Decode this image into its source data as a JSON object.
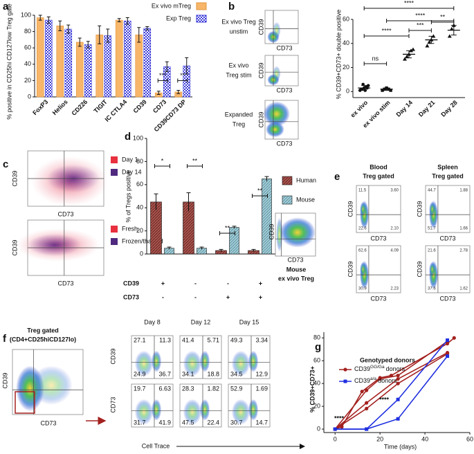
{
  "figure": {
    "panel_labels": [
      "a",
      "b",
      "c",
      "d",
      "e",
      "f",
      "g"
    ],
    "b_flow": {
      "labels": [
        [
          "Ex vivo Treg",
          "unstim"
        ],
        [
          "Ex vivo",
          "Treg stim"
        ],
        [
          "Expanded",
          "Treg"
        ]
      ],
      "x_axis": "CD73",
      "y_axis": "CD39"
    },
    "c_flow": {
      "legends": [
        [
          "Day 1",
          "Day 14"
        ],
        [
          "Fresh",
          "Frozen/thawed"
        ]
      ],
      "x_axis": "CD73",
      "y_axis": "CD39"
    },
    "d_inset": {
      "label": [
        "Mouse",
        "ex vivo Treg"
      ],
      "x_axis": "CD73",
      "y_axis": "CD39"
    },
    "e_flow": {
      "columns": [
        [
          "Blood",
          "Treg gated"
        ],
        [
          "Spleen",
          "Treg gated"
        ]
      ],
      "x_axis": "CD73",
      "y_axis": "CD39",
      "quadrants": [
        [
          [
            "11.5",
            "3.60",
            "22.6",
            "2.10"
          ],
          [
            "62.6",
            "4.09",
            "30.9",
            "2.23"
          ]
        ],
        [
          [
            "44.7",
            "1.88",
            "51.7",
            "1.66"
          ],
          [
            "21.6",
            "2.78",
            "37.6",
            "1.62"
          ]
        ]
      ]
    },
    "f_flow": {
      "gate_title": "Treg gated",
      "gate_subtitle": "(CD4+CD25hiCD127lo)",
      "gate_x_axis": "CD73",
      "gate_y_axis": "CD39",
      "days": [
        "Day 8",
        "Day 12",
        "Day 15"
      ],
      "row_labels": [
        "CD39",
        "CD73"
      ],
      "x_axis": "Cell Trace",
      "quadrants": [
        [
          [
            "27.1",
            "11.3",
            "24.9",
            "36.7"
          ],
          [
            "41.4",
            "5.71",
            "34.1",
            "18.8"
          ],
          [
            "49.3",
            "3.34",
            "34.5",
            "12.9"
          ]
        ],
        [
          [
            "19.7",
            "6.63",
            "31.7",
            "41.9"
          ],
          [
            "28.3",
            "1.82",
            "47.5",
            "22.4"
          ],
          [
            "52.9",
            "1.69",
            "30.7",
            "14.7"
          ]
        ]
      ]
    }
  },
  "chart_data": [
    {
      "type": "bar",
      "ylabel": "% positive in CD25hi CD127low Treg gate",
      "categories": [
        "FoxP3",
        "Helios",
        "CD226",
        "TIGIT",
        "IC CTLA4",
        "CD39",
        "CD73",
        "CD39CD73 DP"
      ],
      "series": [
        {
          "name": "Ex vivo mTreg",
          "color": "#f7b66a",
          "values": [
            97,
            87,
            67,
            76,
            94,
            76,
            5,
            6
          ],
          "errors": [
            3,
            6,
            5,
            11,
            2,
            9,
            2,
            2
          ]
        },
        {
          "name": "Exp Treg",
          "color": "#3a3ad8",
          "values": [
            94,
            83,
            64,
            75,
            93,
            84,
            37,
            38
          ],
          "errors": [
            4,
            5,
            4,
            8,
            4,
            2,
            6,
            10
          ]
        }
      ],
      "ylim": [
        0,
        100
      ],
      "yticks": [
        0,
        20,
        40,
        60,
        80,
        100
      ],
      "annotations": [
        "***",
        "**"
      ]
    },
    {
      "type": "dot",
      "ylabel": "% CD39+CD73+ double positive",
      "categories": [
        "ex vivo",
        "ex vivo stim",
        "Day 14",
        "Day 21",
        "Day 28"
      ],
      "points": [
        [
          1,
          2,
          3,
          4,
          5,
          2,
          3,
          6,
          1
        ],
        [
          1,
          2,
          3,
          2,
          1
        ],
        [
          27,
          29,
          31,
          34,
          35
        ],
        [
          38,
          41,
          43,
          46
        ],
        [
          46,
          52,
          55
        ]
      ],
      "means": [
        3,
        2,
        31,
        43,
        51
      ],
      "errors": [
        2,
        1,
        3,
        3,
        4
      ],
      "ylim": [
        -5,
        60
      ],
      "yticks": [
        0,
        20,
        40,
        60
      ],
      "annotations": [
        "****",
        "****",
        "****",
        "***",
        "**",
        "ns"
      ]
    },
    {
      "type": "bar",
      "ylabel": "% of Tregs positive",
      "categories": [
        null,
        null,
        null,
        null
      ],
      "row_labels": [
        "CD39",
        "CD73"
      ],
      "rows": [
        [
          "+",
          "-",
          "-",
          "+"
        ],
        [
          "-",
          "-",
          "+",
          "+"
        ]
      ],
      "series": [
        {
          "name": "Human",
          "color": "#a9544e",
          "values": [
            45,
            45,
            3,
            3
          ],
          "errors": [
            7,
            8,
            1,
            1
          ]
        },
        {
          "name": "Mouse",
          "color": "#9fcbd6",
          "values": [
            5,
            5,
            23,
            65
          ],
          "errors": [
            1,
            1,
            1,
            2
          ]
        }
      ],
      "ylim": [
        0,
        100
      ],
      "yticks": [
        0,
        20,
        40,
        60,
        80,
        100
      ],
      "annotations": [
        "*",
        "**",
        "**",
        "**"
      ]
    },
    {
      "type": "line",
      "title": "Genotyped donors",
      "xlabel": "Time (days)",
      "ylabel": "% CD39+CD73+",
      "series": [
        {
          "name_base": "CD39",
          "name_sup": "GG/Ga",
          "name_tail": "donors",
          "color": "#a3211f",
          "marker": "circle",
          "lines": [
            {
              "x": [
                0,
                3,
                12,
                20,
                25,
                50,
                53
              ],
              "y": [
                0,
                2,
                33,
                45,
                47,
                75,
                80
              ]
            },
            {
              "x": [
                0,
                14,
                20,
                28,
                50
              ],
              "y": [
                0,
                34,
                44,
                47,
                77
              ]
            },
            {
              "x": [
                0,
                14,
                28,
                50
              ],
              "y": [
                0,
                23,
                44,
                67
              ]
            },
            {
              "x": [
                0,
                14,
                28,
                50
              ],
              "y": [
                0,
                18,
                40,
                66
              ]
            }
          ]
        },
        {
          "name_base": "CD39",
          "name_sup": "a/a",
          "name_tail": "donors",
          "color": "#1f2fe0",
          "marker": "square",
          "lines": [
            {
              "x": [
                0,
                14,
                28,
                50
              ],
              "y": [
                0,
                0,
                26,
                78
              ]
            },
            {
              "x": [
                0,
                14,
                28,
                50
              ],
              "y": [
                0,
                0,
                9,
                64
              ]
            }
          ]
        }
      ],
      "xlim": [
        -5,
        60
      ],
      "xticks": [
        0,
        20,
        40,
        60
      ],
      "ylim": [
        -3,
        85
      ],
      "yticks": [
        0,
        20,
        40,
        60,
        80
      ],
      "annotations": [
        "****",
        "****"
      ]
    }
  ]
}
